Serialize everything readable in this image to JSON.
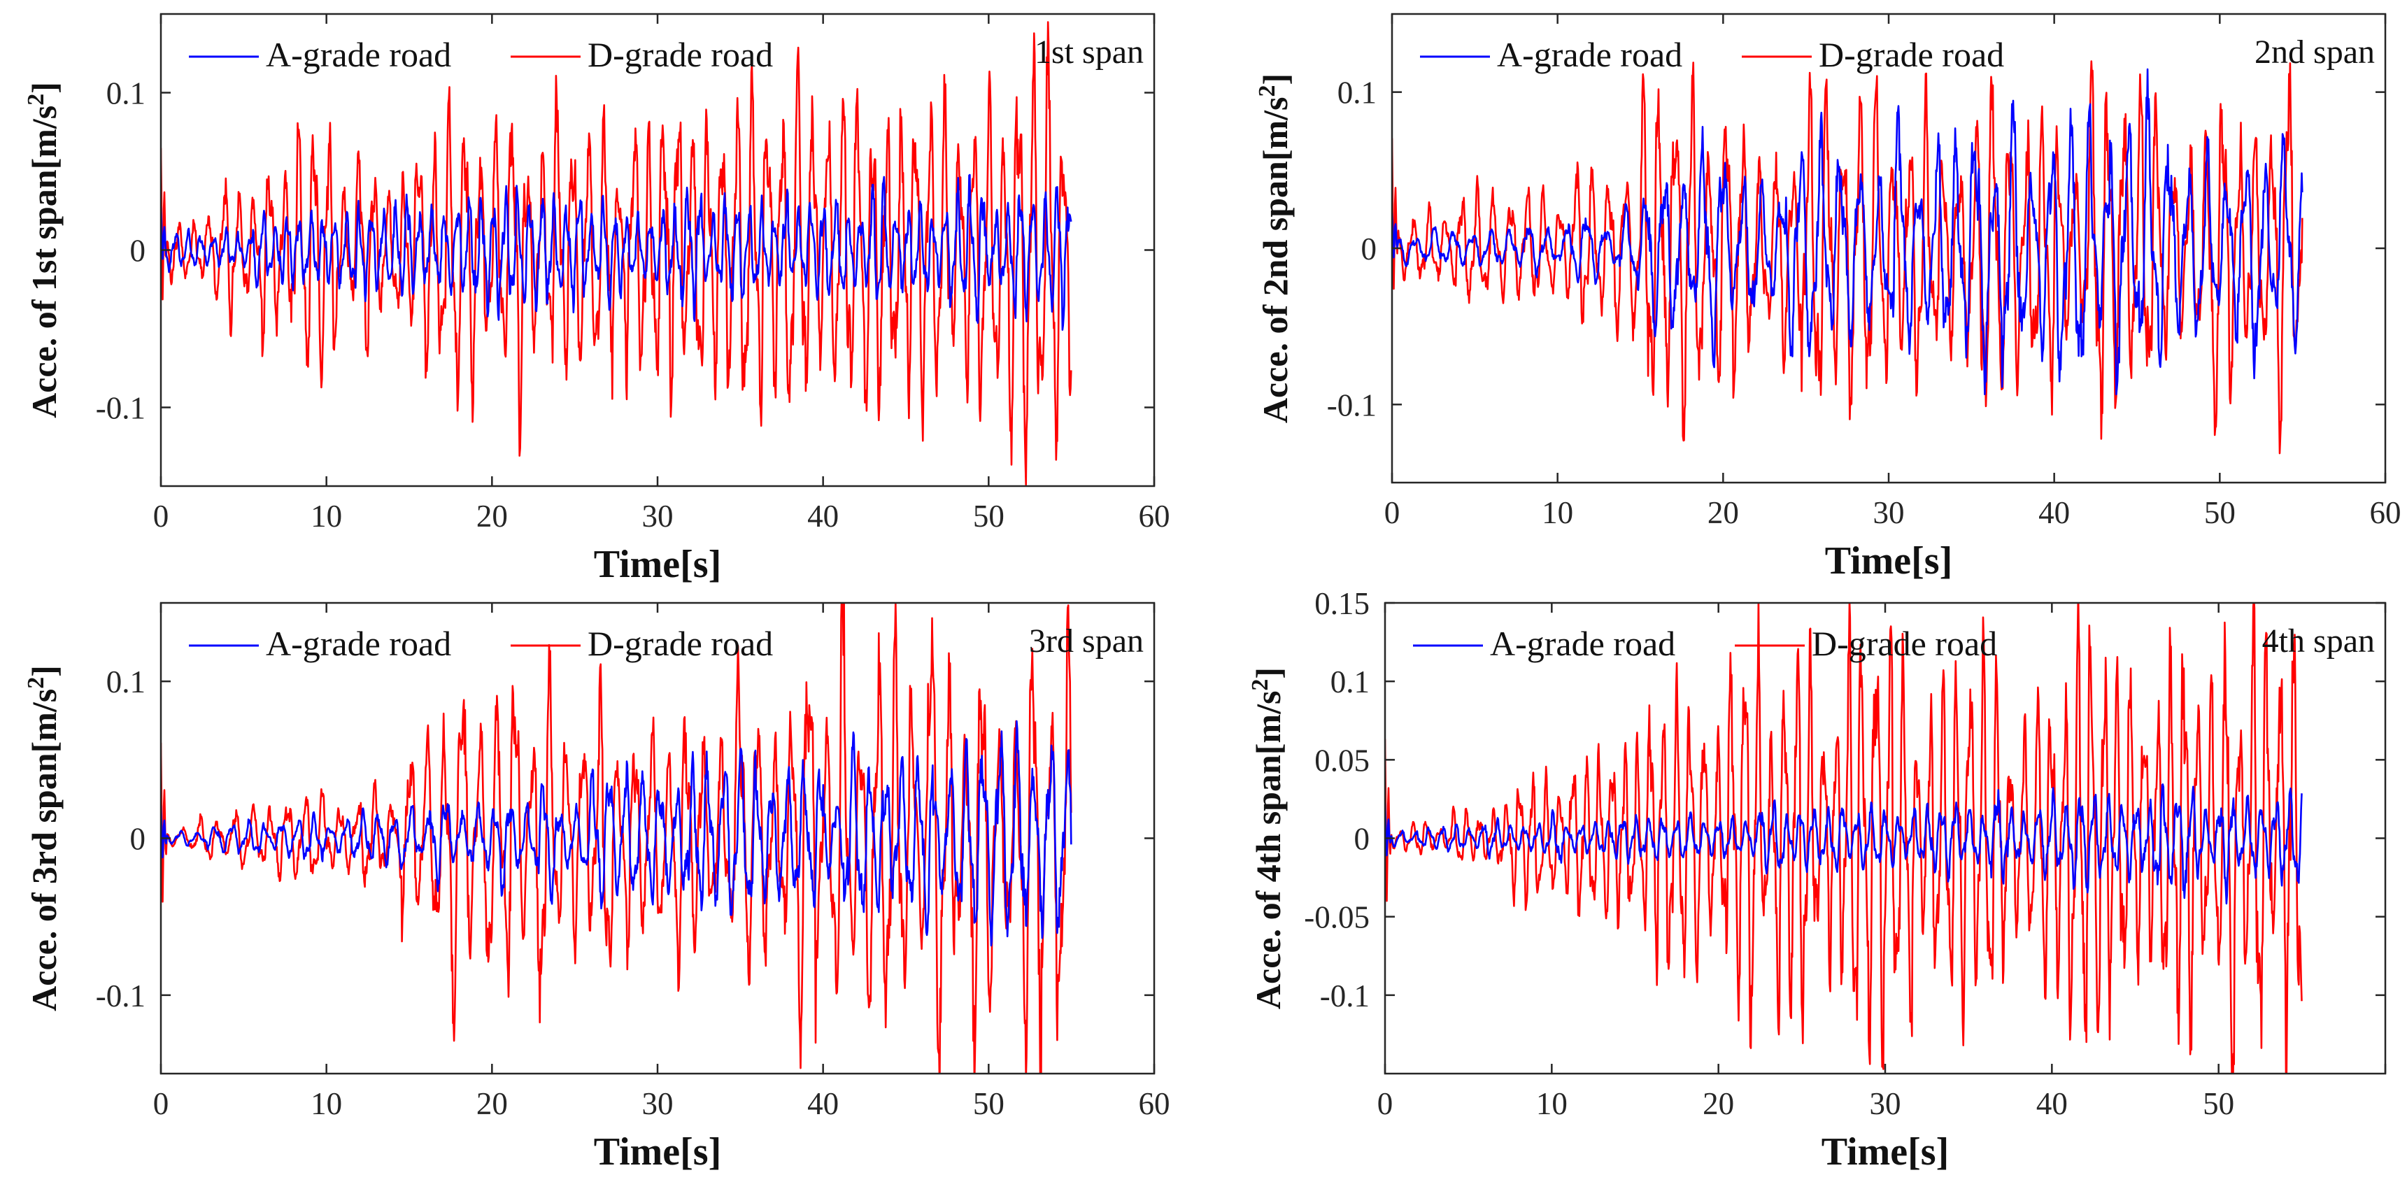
{
  "chart_data": [
    {
      "type": "line",
      "corner_label": "1st span",
      "xlabel": "Time[s]",
      "ylabel": "Acce. of 1st span[m/s^2]",
      "ylabel_base": "Acce. of 1st span[m/s",
      "ylabel_sup": "2",
      "ylabel_end": "]",
      "xlim": [
        0,
        60
      ],
      "ylim": [
        -0.15,
        0.15
      ],
      "xticks": [
        0,
        10,
        20,
        30,
        40,
        50,
        60
      ],
      "xtick_labels": [
        "0",
        "10",
        "20",
        "30",
        "40",
        "50",
        "60"
      ],
      "yticks": [
        -0.1,
        0,
        0.1
      ],
      "ytick_labels": [
        "-0.1",
        "0",
        "0.1"
      ],
      "grid": false,
      "legend_position": "top-left",
      "series": [
        {
          "name": "A-grade road",
          "color": "#0000ff",
          "t_end": 55,
          "amp_envelope": [
            [
              0,
              0.012
            ],
            [
              10,
              0.02
            ],
            [
              15,
              0.03
            ],
            [
              30,
              0.03
            ],
            [
              40,
              0.03
            ],
            [
              55,
              0.035
            ]
          ],
          "freq_hz": 1.35,
          "seed": 11
        },
        {
          "name": "D-grade road",
          "color": "#ff0000",
          "t_end": 55,
          "amp_envelope": [
            [
              0,
              0.02
            ],
            [
              3,
              0.03
            ],
            [
              6,
              0.05
            ],
            [
              15,
              0.07
            ],
            [
              20,
              0.085
            ],
            [
              30,
              0.085
            ],
            [
              40,
              0.08
            ],
            [
              50,
              0.09
            ],
            [
              55,
              0.095
            ]
          ],
          "freq_hz": 1.1,
          "seed": 23
        }
      ]
    },
    {
      "type": "line",
      "corner_label": "2nd span",
      "xlabel": "Time[s]",
      "ylabel": "Acce. of 2nd span[m/s^2]",
      "ylabel_base": "Acce. of 2nd span[m/s",
      "ylabel_sup": "2",
      "ylabel_end": "]",
      "xlim": [
        0,
        60
      ],
      "ylim": [
        -0.15,
        0.15
      ],
      "xticks": [
        0,
        10,
        20,
        30,
        40,
        50,
        60
      ],
      "xtick_labels": [
        "0",
        "10",
        "20",
        "30",
        "40",
        "50",
        "60"
      ],
      "yticks": [
        -0.1,
        0,
        0.1
      ],
      "ytick_labels": [
        "-0.1",
        "0",
        "0.1"
      ],
      "grid": false,
      "legend_position": "top-left",
      "series": [
        {
          "name": "A-grade road",
          "color": "#0000ff",
          "t_end": 55,
          "amp_envelope": [
            [
              0,
              0.01
            ],
            [
              10,
              0.015
            ],
            [
              14,
              0.02
            ],
            [
              15,
              0.04
            ],
            [
              20,
              0.05
            ],
            [
              30,
              0.06
            ],
            [
              40,
              0.07
            ],
            [
              55,
              0.075
            ]
          ],
          "freq_hz": 0.85,
          "seed": 37
        },
        {
          "name": "D-grade road",
          "color": "#ff0000",
          "t_end": 55,
          "amp_envelope": [
            [
              0,
              0.015
            ],
            [
              3,
              0.04
            ],
            [
              10,
              0.04
            ],
            [
              14,
              0.05
            ],
            [
              15,
              0.09
            ],
            [
              20,
              0.08
            ],
            [
              30,
              0.08
            ],
            [
              40,
              0.085
            ],
            [
              50,
              0.095
            ],
            [
              55,
              0.085
            ]
          ],
          "freq_hz": 1.0,
          "seed": 41
        }
      ]
    },
    {
      "type": "line",
      "corner_label": "3rd span",
      "xlabel": "Time[s]",
      "ylabel": "Acce. of 3rd span[m/s^2]",
      "ylabel_base": "Acce. of 3rd span[m/s",
      "ylabel_sup": "2",
      "ylabel_end": "]",
      "xlim": [
        0,
        60
      ],
      "ylim": [
        -0.15,
        0.15
      ],
      "xticks": [
        0,
        10,
        20,
        30,
        40,
        50,
        60
      ],
      "xtick_labels": [
        "0",
        "10",
        "20",
        "30",
        "40",
        "50",
        "60"
      ],
      "yticks": [
        -0.1,
        0,
        0.1
      ],
      "ytick_labels": [
        "-0.1",
        "0",
        "0.1"
      ],
      "grid": false,
      "legend_position": "top-left",
      "series": [
        {
          "name": "A-grade road",
          "color": "#0000ff",
          "t_end": 55,
          "amp_envelope": [
            [
              0,
              0.005
            ],
            [
              5,
              0.008
            ],
            [
              15,
              0.02
            ],
            [
              25,
              0.03
            ],
            [
              35,
              0.04
            ],
            [
              45,
              0.045
            ],
            [
              55,
              0.05
            ]
          ],
          "freq_hz": 1.0,
          "seed": 53
        },
        {
          "name": "D-grade road",
          "color": "#ff0000",
          "t_end": 55,
          "amp_envelope": [
            [
              0,
              0.005
            ],
            [
              5,
              0.015
            ],
            [
              10,
              0.025
            ],
            [
              15,
              0.045
            ],
            [
              18,
              0.085
            ],
            [
              25,
              0.085
            ],
            [
              30,
              0.08
            ],
            [
              35,
              0.09
            ],
            [
              40,
              0.11
            ],
            [
              50,
              0.11
            ],
            [
              55,
              0.1
            ]
          ],
          "freq_hz": 0.95,
          "seed": 59
        }
      ]
    },
    {
      "type": "line",
      "corner_label": "4th span",
      "xlabel": "Time[s]",
      "ylabel": "Acce. of 4th span[m/s^2]",
      "ylabel_base": "Acce. of 4th span[m/s",
      "ylabel_sup": "2",
      "ylabel_end": "]",
      "xlim": [
        0,
        60
      ],
      "ylim": [
        -0.15,
        0.15
      ],
      "xticks": [
        0,
        10,
        20,
        30,
        40,
        50,
        60
      ],
      "xtick_labels": [
        "0",
        "10",
        "20",
        "30",
        "40",
        "50",
        ""
      ],
      "yticks": [
        -0.1,
        -0.05,
        0,
        0.05,
        0.1,
        0.15
      ],
      "ytick_labels": [
        "-0.1",
        "-0.05",
        "0",
        "0.05",
        "0.1",
        "0.15"
      ],
      "grid": false,
      "legend_position": "top-left",
      "series": [
        {
          "name": "A-grade road",
          "color": "#0000ff",
          "t_end": 55,
          "amp_envelope": [
            [
              0,
              0.004
            ],
            [
              5,
              0.008
            ],
            [
              15,
              0.015
            ],
            [
              30,
              0.02
            ],
            [
              45,
              0.025
            ],
            [
              55,
              0.03
            ]
          ],
          "freq_hz": 1.2,
          "seed": 71
        },
        {
          "name": "D-grade road",
          "color": "#ff0000",
          "t_end": 55,
          "amp_envelope": [
            [
              0,
              0.005
            ],
            [
              5,
              0.015
            ],
            [
              10,
              0.04
            ],
            [
              15,
              0.06
            ],
            [
              20,
              0.09
            ],
            [
              25,
              0.1
            ],
            [
              30,
              0.1
            ],
            [
              40,
              0.1
            ],
            [
              50,
              0.11
            ],
            [
              55,
              0.1
            ]
          ],
          "freq_hz": 1.25,
          "seed": 83
        }
      ]
    }
  ]
}
